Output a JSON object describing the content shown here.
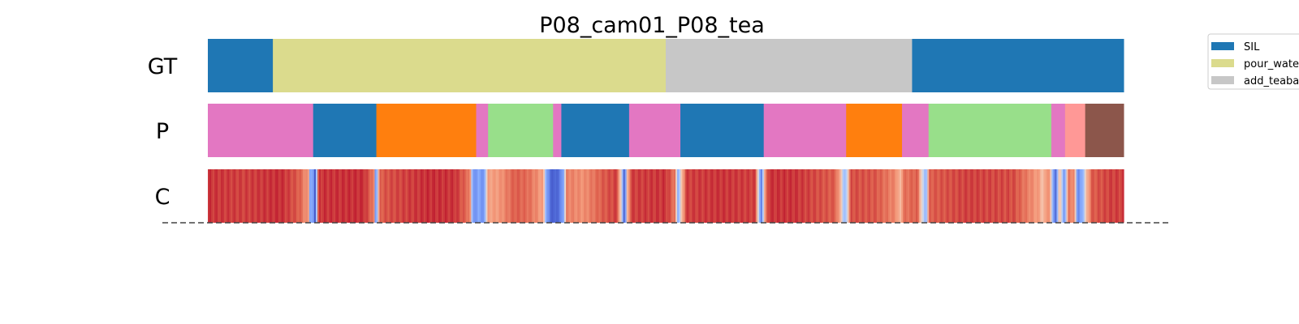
{
  "chart_data": {
    "type": "segmentation-timeline",
    "title": "P08_cam01_P08_tea",
    "x_range": [
      0,
      1
    ],
    "rows": [
      {
        "label": "GT",
        "segments": [
          {
            "start": 0.0,
            "end": 0.071,
            "color": "#1f77b4",
            "class": "SIL"
          },
          {
            "start": 0.071,
            "end": 0.5,
            "color": "#dbdb8d",
            "class": "pour_water"
          },
          {
            "start": 0.5,
            "end": 0.769,
            "color": "#c7c7c7",
            "class": "add_teabag"
          },
          {
            "start": 0.769,
            "end": 1.0,
            "color": "#1f77b4",
            "class": "SIL"
          }
        ]
      },
      {
        "label": "P",
        "segments": [
          {
            "start": 0.0,
            "end": 0.115,
            "color": "#e377c2"
          },
          {
            "start": 0.115,
            "end": 0.184,
            "color": "#1f77b4"
          },
          {
            "start": 0.184,
            "end": 0.293,
            "color": "#ff7f0e"
          },
          {
            "start": 0.293,
            "end": 0.306,
            "color": "#e377c2"
          },
          {
            "start": 0.306,
            "end": 0.377,
            "color": "#98df8a"
          },
          {
            "start": 0.377,
            "end": 0.386,
            "color": "#e377c2"
          },
          {
            "start": 0.386,
            "end": 0.46,
            "color": "#1f77b4"
          },
          {
            "start": 0.46,
            "end": 0.516,
            "color": "#e377c2"
          },
          {
            "start": 0.516,
            "end": 0.607,
            "color": "#1f77b4"
          },
          {
            "start": 0.607,
            "end": 0.697,
            "color": "#e377c2"
          },
          {
            "start": 0.697,
            "end": 0.758,
            "color": "#ff7f0e"
          },
          {
            "start": 0.758,
            "end": 0.787,
            "color": "#e377c2"
          },
          {
            "start": 0.787,
            "end": 0.921,
            "color": "#98df8a"
          },
          {
            "start": 0.921,
            "end": 0.936,
            "color": "#e377c2"
          },
          {
            "start": 0.936,
            "end": 0.958,
            "color": "#ff9896"
          },
          {
            "start": 0.958,
            "end": 1.0,
            "color": "#8c564b"
          }
        ]
      },
      {
        "label": "C",
        "colormap": "coolwarm",
        "confidence": [
          [
            0.0,
            0.92
          ],
          [
            0.04,
            0.9
          ],
          [
            0.08,
            0.93
          ],
          [
            0.1,
            0.85
          ],
          [
            0.11,
            0.7
          ],
          [
            0.112,
            0.2
          ],
          [
            0.114,
            0.3
          ],
          [
            0.117,
            0.05
          ],
          [
            0.121,
            0.92
          ],
          [
            0.17,
            0.93
          ],
          [
            0.181,
            0.8
          ],
          [
            0.183,
            0.25
          ],
          [
            0.185,
            0.4
          ],
          [
            0.188,
            0.85
          ],
          [
            0.2,
            0.88
          ],
          [
            0.24,
            0.93
          ],
          [
            0.27,
            0.92
          ],
          [
            0.286,
            0.8
          ],
          [
            0.289,
            0.3
          ],
          [
            0.293,
            0.15
          ],
          [
            0.296,
            0.35
          ],
          [
            0.3,
            0.12
          ],
          [
            0.303,
            0.4
          ],
          [
            0.306,
            0.7
          ],
          [
            0.318,
            0.72
          ],
          [
            0.335,
            0.85
          ],
          [
            0.35,
            0.82
          ],
          [
            0.366,
            0.7
          ],
          [
            0.37,
            0.25
          ],
          [
            0.374,
            0.1
          ],
          [
            0.378,
            0.05
          ],
          [
            0.384,
            0.12
          ],
          [
            0.388,
            0.25
          ],
          [
            0.392,
            0.78
          ],
          [
            0.41,
            0.74
          ],
          [
            0.43,
            0.85
          ],
          [
            0.447,
            0.9
          ],
          [
            0.452,
            0.45
          ],
          [
            0.455,
            0.02
          ],
          [
            0.458,
            0.6
          ],
          [
            0.462,
            0.9
          ],
          [
            0.5,
            0.92
          ],
          [
            0.51,
            0.8
          ],
          [
            0.513,
            0.3
          ],
          [
            0.516,
            0.5
          ],
          [
            0.522,
            0.9
          ],
          [
            0.56,
            0.92
          ],
          [
            0.598,
            0.9
          ],
          [
            0.602,
            0.4
          ],
          [
            0.604,
            0.05
          ],
          [
            0.607,
            0.6
          ],
          [
            0.612,
            0.92
          ],
          [
            0.64,
            0.92
          ],
          [
            0.685,
            0.85
          ],
          [
            0.692,
            0.6
          ],
          [
            0.695,
            0.3
          ],
          [
            0.698,
            0.5
          ],
          [
            0.702,
            0.88
          ],
          [
            0.73,
            0.86
          ],
          [
            0.752,
            0.75
          ],
          [
            0.756,
            0.6
          ],
          [
            0.759,
            0.8
          ],
          [
            0.775,
            0.85
          ],
          [
            0.781,
            0.45
          ],
          [
            0.784,
            0.3
          ],
          [
            0.788,
            0.85
          ],
          [
            0.83,
            0.9
          ],
          [
            0.88,
            0.88
          ],
          [
            0.908,
            0.7
          ],
          [
            0.912,
            0.6
          ],
          [
            0.918,
            0.8
          ],
          [
            0.922,
            0.4
          ],
          [
            0.926,
            0.05
          ],
          [
            0.93,
            0.7
          ],
          [
            0.935,
            0.2
          ],
          [
            0.94,
            0.8
          ],
          [
            0.946,
            0.75
          ],
          [
            0.95,
            0.15
          ],
          [
            0.955,
            0.3
          ],
          [
            0.959,
            0.6
          ],
          [
            0.965,
            0.85
          ],
          [
            0.985,
            0.9
          ],
          [
            1.0,
            0.9
          ]
        ]
      }
    ],
    "legend": {
      "placement": "upper-right",
      "entries": [
        {
          "label": "SIL",
          "color": "#1f77b4"
        },
        {
          "label": "pour_water",
          "color": "#dbdb8d"
        },
        {
          "label": "add_teabag",
          "color": "#c7c7c7"
        }
      ]
    },
    "baseline": {
      "style": "dashed",
      "color": "#444444"
    }
  }
}
